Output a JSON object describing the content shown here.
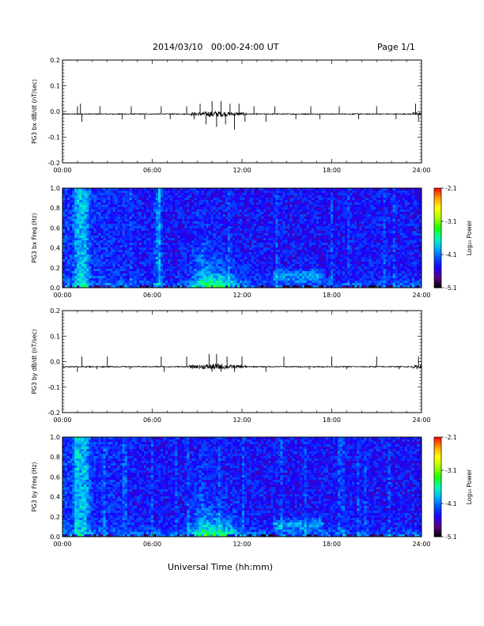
{
  "header": {
    "title": "2014/03/10   00:00-24:00 UT",
    "page": "Page 1/1"
  },
  "x_axis": {
    "title": "Universal Time (hh:mm)",
    "ticks": [
      "00:00",
      "06:00",
      "12:00",
      "18:00",
      "24:00"
    ],
    "range_hours": [
      0,
      24
    ]
  },
  "colorbar": {
    "label": "Log₁₀ Power",
    "ticks": [
      "-2.1",
      "-3.1",
      "-4.1",
      "-5.1"
    ],
    "range": [
      -5.1,
      -2.1
    ],
    "colormap": [
      "#000000",
      "#5a0080",
      "#1a00ff",
      "#0050ff",
      "#00b8ff",
      "#00ffb0",
      "#20ff00",
      "#b0ff00",
      "#ffff00",
      "#ffa000",
      "#ff0000"
    ]
  },
  "chart_data": [
    {
      "type": "line",
      "ylabel": "PG3 bx dB/dt (nT/sec)",
      "ylim": [
        -0.2,
        0.2
      ],
      "y_ticks": [
        "0.2",
        "0.1",
        "0.0",
        "-0.1",
        "-0.2"
      ],
      "x_ticks": [
        "00:00",
        "06:00",
        "12:00",
        "18:00",
        "24:00"
      ],
      "baseline": -0.01,
      "series": [
        {
          "x_hours": [
            1.0,
            1.2,
            1.3,
            2.5,
            4.0,
            4.6,
            5.5,
            6.6,
            7.2,
            8.3,
            8.8,
            9.2,
            9.6,
            10.0,
            10.3,
            10.6,
            10.9,
            11.2,
            11.5,
            11.8,
            12.2,
            12.8,
            13.6,
            14.2,
            15.6,
            16.6,
            17.2,
            18.5,
            19.8,
            21.0,
            22.3,
            23.6,
            23.8
          ],
          "y_peak": [
            0.02,
            0.03,
            -0.04,
            0.02,
            -0.03,
            0.02,
            -0.03,
            0.02,
            -0.03,
            0.02,
            -0.03,
            0.03,
            -0.05,
            0.04,
            -0.06,
            0.04,
            -0.05,
            0.03,
            -0.07,
            0.03,
            -0.04,
            0.02,
            -0.04,
            0.02,
            -0.03,
            0.02,
            -0.03,
            0.02,
            -0.03,
            0.02,
            -0.03,
            0.03,
            -0.04
          ]
        }
      ]
    },
    {
      "type": "heatmap",
      "ylabel": "PG3 bx Freq (Hz)",
      "ylim": [
        0.0,
        1.0
      ],
      "y_ticks": [
        "1.0",
        "0.8",
        "0.6",
        "0.4",
        "0.2",
        "0.0"
      ],
      "x_ticks": [
        "00:00",
        "06:00",
        "12:00",
        "18:00",
        "24:00"
      ],
      "features": {
        "broadband_bursts_hours": [
          1.0,
          1.3,
          1.6,
          6.4
        ],
        "elevated_low_freq_hours": [
          7.5,
          13.5
        ],
        "band_hours": [
          14.0,
          17.5
        ],
        "band_hz": [
          0.05,
          0.2
        ]
      }
    },
    {
      "type": "line",
      "ylabel": "PG3 by dB/dt (nT/sec)",
      "ylim": [
        -0.2,
        0.2
      ],
      "y_ticks": [
        "0.2",
        "0.1",
        "0.0",
        "-0.1",
        "-0.2"
      ],
      "x_ticks": [
        "00:00",
        "06:00",
        "12:00",
        "18:00",
        "24:00"
      ],
      "baseline": -0.02,
      "series": [
        {
          "x_hours": [
            1.0,
            1.3,
            2.3,
            3.0,
            4.5,
            6.6,
            6.8,
            8.3,
            9.4,
            9.8,
            10.0,
            10.3,
            10.6,
            11.0,
            11.5,
            12.0,
            13.6,
            14.8,
            16.5,
            18.0,
            19.0,
            21.0,
            22.5,
            23.7,
            23.8
          ],
          "y_peak": [
            -0.04,
            0.02,
            -0.03,
            0.02,
            -0.03,
            0.02,
            -0.04,
            0.02,
            -0.03,
            0.03,
            -0.04,
            0.03,
            -0.04,
            0.02,
            -0.04,
            0.02,
            -0.04,
            0.02,
            -0.03,
            0.02,
            -0.03,
            0.02,
            -0.03,
            -0.03,
            0.02
          ]
        }
      ]
    },
    {
      "type": "heatmap",
      "ylabel": "PG3 by Freq (Hz)",
      "ylim": [
        0.0,
        1.0
      ],
      "y_ticks": [
        "1.0",
        "0.8",
        "0.6",
        "0.4",
        "0.2",
        "0.0"
      ],
      "x_ticks": [
        "00:00",
        "06:00",
        "12:00",
        "18:00",
        "24:00"
      ],
      "features": {
        "broadband_bursts_hours": [
          1.0,
          1.3,
          1.6
        ],
        "elevated_low_freq_hours": [
          7.5,
          13.5
        ],
        "band_hours": [
          14.0,
          17.5
        ],
        "band_hz": [
          0.05,
          0.2
        ]
      }
    }
  ]
}
